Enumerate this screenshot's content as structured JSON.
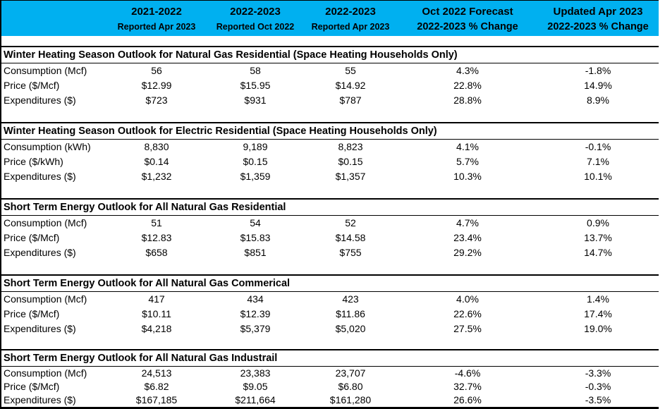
{
  "table": {
    "accent_color": "#00B0F0",
    "border_color": "#000000",
    "columns": [
      {
        "line1": "",
        "line2": "",
        "small2": false
      },
      {
        "line1": "2021-2022",
        "line2": "Reported Apr 2023",
        "small2": true
      },
      {
        "line1": "2022-2023",
        "line2": "Reported Oct 2022",
        "small2": true
      },
      {
        "line1": "2022-2023",
        "line2": "Reported Apr 2023",
        "small2": true
      },
      {
        "line1": "Oct 2022 Forecast",
        "line2": "2022-2023 % Change",
        "small2": false
      },
      {
        "line1": "Updated Apr 2023",
        "line2": "2022-2023 % Change",
        "small2": false
      }
    ],
    "sections": [
      {
        "title": "Winter Heating Season Outlook for Natural Gas Residential (Space Heating Households Only)",
        "rows": [
          {
            "label": "Consumption (Mcf)",
            "values": [
              "56",
              "58",
              "55",
              "4.3%",
              "-1.8%"
            ]
          },
          {
            "label": "Price ($/Mcf)",
            "values": [
              "$12.99",
              "$15.95",
              "$14.92",
              "22.8%",
              "14.9%"
            ]
          },
          {
            "label": "Expenditures ($)",
            "values": [
              "$723",
              "$931",
              "$787",
              "28.8%",
              "8.9%"
            ]
          }
        ]
      },
      {
        "title": "Winter Heating Season Outlook for Electric Residential (Space Heating Households Only)",
        "rows": [
          {
            "label": "Consumption (kWh)",
            "values": [
              "8,830",
              "9,189",
              "8,823",
              "4.1%",
              "-0.1%"
            ]
          },
          {
            "label": "Price ($/kWh)",
            "values": [
              "$0.14",
              "$0.15",
              "$0.15",
              "5.7%",
              "7.1%"
            ]
          },
          {
            "label": "Expenditures ($)",
            "values": [
              "$1,232",
              "$1,359",
              "$1,357",
              "10.3%",
              "10.1%"
            ]
          }
        ]
      },
      {
        "title": "Short Term Energy Outlook for All Natural Gas Residential",
        "rows": [
          {
            "label": "Consumption (Mcf)",
            "values": [
              "51",
              "54",
              "52",
              "4.7%",
              "0.9%"
            ]
          },
          {
            "label": "Price ($/Mcf)",
            "values": [
              "$12.83",
              "$15.83",
              "$14.58",
              "23.4%",
              "13.7%"
            ]
          },
          {
            "label": "Expenditures ($)",
            "values": [
              "$658",
              "$851",
              "$755",
              "29.2%",
              "14.7%"
            ]
          }
        ]
      },
      {
        "title": "Short Term Energy Outlook for All Natural Gas Commerical",
        "rows": [
          {
            "label": "Consumption (Mcf)",
            "values": [
              "417",
              "434",
              "423",
              "4.0%",
              "1.4%"
            ]
          },
          {
            "label": "Price ($/Mcf)",
            "values": [
              "$10.11",
              "$12.39",
              "$11.86",
              "22.6%",
              "17.4%"
            ]
          },
          {
            "label": "Expenditures ($)",
            "values": [
              "$4,218",
              "$5,379",
              "$5,020",
              "27.5%",
              "19.0%"
            ]
          }
        ]
      },
      {
        "title": "Short Term Energy Outlook for All Natural Gas Industrail",
        "rows": [
          {
            "label": "Consumption (Mcf)",
            "values": [
              "24,513",
              "23,383",
              "23,707",
              "-4.6%",
              "-3.3%"
            ]
          },
          {
            "label": "Price ($/Mcf)",
            "values": [
              "$6.82",
              "$9.05",
              "$6.80",
              "32.7%",
              "-0.3%"
            ]
          },
          {
            "label": "Expenditures ($)",
            "values": [
              "$167,185",
              "$211,664",
              "$161,280",
              "26.6%",
              "-3.5%"
            ]
          }
        ]
      }
    ]
  }
}
